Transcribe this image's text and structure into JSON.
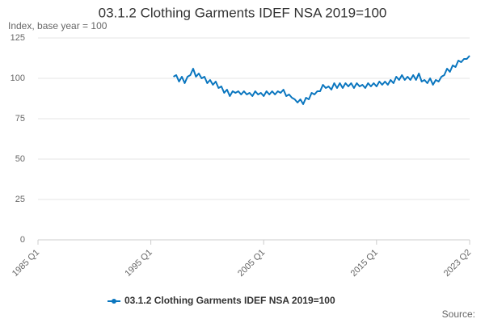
{
  "chart_data": {
    "type": "line",
    "title": "03.1.2 Clothing Garments IDEF NSA 2019=100",
    "y_label": "Index, base year = 100",
    "source": "Source:",
    "categories": [
      "1985 Q1",
      null,
      null,
      null,
      null,
      null,
      null,
      null,
      null,
      null,
      null,
      null,
      null,
      null,
      null,
      null,
      null,
      null,
      null,
      null,
      null,
      null,
      null,
      null,
      null,
      null,
      null,
      null,
      null,
      null,
      null,
      null,
      null,
      null,
      null,
      null,
      null,
      null,
      null,
      null,
      "1995 Q1",
      null,
      null,
      null,
      null,
      null,
      null,
      null,
      null,
      null,
      null,
      null,
      null,
      null,
      null,
      null,
      null,
      null,
      null,
      null,
      null,
      null,
      null,
      null,
      null,
      null,
      null,
      null,
      null,
      null,
      null,
      null,
      null,
      null,
      null,
      null,
      null,
      null,
      null,
      null,
      "2005 Q1",
      null,
      null,
      null,
      null,
      null,
      null,
      null,
      null,
      null,
      null,
      null,
      null,
      null,
      null,
      null,
      null,
      null,
      null,
      null,
      null,
      null,
      null,
      null,
      null,
      null,
      null,
      null,
      null,
      null,
      null,
      null,
      null,
      null,
      null,
      null,
      null,
      null,
      null,
      null,
      "2015 Q1",
      null,
      null,
      null,
      null,
      null,
      null,
      null,
      null,
      null,
      null,
      null,
      null,
      null,
      null,
      null,
      null,
      null,
      null,
      null,
      null,
      null,
      null,
      null,
      null,
      null,
      null,
      null,
      null,
      null,
      null,
      null,
      null,
      "2023 Q2"
    ],
    "series": [
      {
        "name": "03.1.2 Clothing Garments IDEF NSA 2019=100",
        "color": "#0a76bf",
        "values": [
          null,
          null,
          null,
          null,
          null,
          null,
          null,
          null,
          null,
          null,
          null,
          null,
          null,
          null,
          null,
          null,
          null,
          null,
          null,
          null,
          null,
          null,
          null,
          null,
          null,
          null,
          null,
          null,
          null,
          null,
          null,
          null,
          null,
          null,
          null,
          null,
          null,
          null,
          null,
          null,
          null,
          null,
          null,
          null,
          null,
          null,
          null,
          null,
          101,
          102,
          98,
          101,
          97,
          101,
          102,
          106,
          101,
          103,
          100,
          101,
          97,
          99,
          96,
          98,
          94,
          95,
          91,
          93,
          89,
          92,
          91,
          92,
          90,
          92,
          90,
          91,
          89,
          92,
          90,
          91,
          89,
          92,
          90,
          92,
          90,
          92,
          91,
          93,
          89,
          90,
          88,
          87,
          85,
          87,
          84,
          88,
          87,
          91,
          90,
          92,
          92,
          96,
          94,
          95,
          93,
          97,
          94,
          97,
          94,
          97,
          95,
          97,
          94,
          97,
          95,
          96,
          94,
          97,
          95,
          97,
          95,
          98,
          96,
          98,
          96,
          99,
          97,
          101,
          99,
          102,
          99,
          101,
          99,
          102,
          99,
          103,
          98,
          99,
          97,
          100,
          96,
          99,
          98,
          101,
          102,
          106,
          104,
          108,
          107,
          111,
          110,
          112,
          112,
          114
        ]
      }
    ],
    "ylim": [
      0,
      125
    ],
    "yticks": [
      0,
      25,
      50,
      75,
      100,
      125
    ],
    "grid": true
  }
}
